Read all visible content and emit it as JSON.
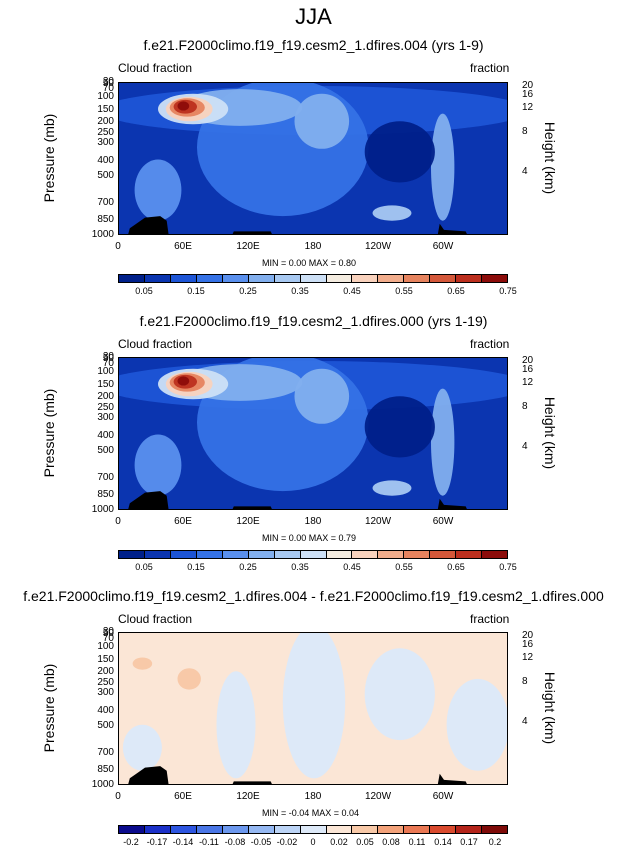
{
  "page_title": "JJA",
  "colors": {
    "ramp": [
      "#00208a",
      "#0b35b0",
      "#1d55d6",
      "#3572e6",
      "#5a90ee",
      "#82afee",
      "#a8c9f2",
      "#cde0f6",
      "#f4ece0",
      "#f9d2bd",
      "#f2ad8c",
      "#e6835e",
      "#d4583a",
      "#bc2f1e",
      "#8c0c0a"
    ],
    "diverging": [
      "#0a0a8c",
      "#1b30c8",
      "#2d55e0",
      "#4a76e6",
      "#6c98ee",
      "#95b8f2",
      "#bcd4f6",
      "#dde9f8",
      "#fbe6d6",
      "#f8c9a8",
      "#f3a27a",
      "#ea7854",
      "#d94a2e",
      "#b4241a",
      "#7e0a08"
    ],
    "land": "#000000"
  },
  "chart_data": [
    {
      "type": "heatmap",
      "title": "f.e21.F2000climo.f19_f19.cesm2_1.dfires.004 (yrs 1-9)",
      "left_annotation": "Cloud fraction",
      "right_annotation": "fraction",
      "ylabel": "Pressure (mb)",
      "ylabel_right": "Height (km)",
      "pressure_ticks": [
        "30",
        "50",
        "70",
        "100",
        "150",
        "200",
        "250",
        "300",
        "400",
        "500",
        "700",
        "850",
        "1000"
      ],
      "height_ticks": [
        "20",
        "16",
        "12",
        "8",
        "4"
      ],
      "x_ticks": [
        "0",
        "60E",
        "120E",
        "180",
        "120W",
        "60W"
      ],
      "stats": {
        "min": "0.00",
        "max": "0.80",
        "text": "MIN =   0.00   MAX =   0.80"
      },
      "colorbar_labels": [
        "0.05",
        "0.15",
        "0.25",
        "0.35",
        "0.45",
        "0.55",
        "0.65",
        "0.75"
      ],
      "scale": "ramp",
      "features": [
        {
          "name": "upper-tropospheric maximum",
          "lon": 65,
          "pressure": 200,
          "value": 0.8
        },
        {
          "name": "secondary upper maximum",
          "lon": 130,
          "pressure": 250,
          "value": 0.35
        },
        {
          "name": "low-level max",
          "lon": 275,
          "pressure": 870,
          "value": 0.35
        },
        {
          "name": "western hemisphere column",
          "lon": 298,
          "pressure": 600,
          "value": 0.3
        }
      ]
    },
    {
      "type": "heatmap",
      "title": "f.e21.F2000climo.f19_f19.cesm2_1.dfires.000 (yrs 1-19)",
      "left_annotation": "Cloud fraction",
      "right_annotation": "fraction",
      "ylabel": "Pressure (mb)",
      "ylabel_right": "Height (km)",
      "pressure_ticks": [
        "30",
        "50",
        "70",
        "100",
        "150",
        "200",
        "250",
        "300",
        "400",
        "500",
        "700",
        "850",
        "1000"
      ],
      "height_ticks": [
        "20",
        "16",
        "12",
        "8",
        "4"
      ],
      "x_ticks": [
        "0",
        "60E",
        "120E",
        "180",
        "120W",
        "60W"
      ],
      "stats": {
        "min": "0.00",
        "max": "0.79",
        "text": "MIN =   0.00   MAX =   0.79"
      },
      "colorbar_labels": [
        "0.05",
        "0.15",
        "0.25",
        "0.35",
        "0.45",
        "0.55",
        "0.65",
        "0.75"
      ],
      "scale": "ramp",
      "features": [
        {
          "name": "upper-tropospheric maximum",
          "lon": 65,
          "pressure": 200,
          "value": 0.79
        },
        {
          "name": "secondary upper maximum",
          "lon": 130,
          "pressure": 250,
          "value": 0.35
        },
        {
          "name": "low-level max",
          "lon": 275,
          "pressure": 870,
          "value": 0.35
        },
        {
          "name": "western hemisphere column",
          "lon": 298,
          "pressure": 600,
          "value": 0.3
        }
      ]
    },
    {
      "type": "heatmap",
      "title": "f.e21.F2000climo.f19_f19.cesm2_1.dfires.004 - f.e21.F2000climo.f19_f19.cesm2_1.dfires.000",
      "left_annotation": "Cloud fraction",
      "right_annotation": "fraction",
      "ylabel": "Pressure (mb)",
      "ylabel_right": "Height (km)",
      "pressure_ticks": [
        "30",
        "50",
        "70",
        "100",
        "150",
        "200",
        "250",
        "300",
        "400",
        "500",
        "700",
        "850",
        "1000"
      ],
      "height_ticks": [
        "20",
        "16",
        "12",
        "8",
        "4"
      ],
      "x_ticks": [
        "0",
        "60E",
        "120E",
        "180",
        "120W",
        "60W"
      ],
      "stats": {
        "min": "-0.04",
        "max": "0.04",
        "text": "MIN =  -0.04   MAX =   0.04"
      },
      "colorbar_labels": [
        "-0.2",
        "-0.17",
        "-0.14",
        "-0.11",
        "-0.08",
        "-0.05",
        "-0.02",
        "0",
        "0.02",
        "0.05",
        "0.08",
        "0.11",
        "0.14",
        "0.17",
        "0.2"
      ],
      "scale": "diverging",
      "features": [
        {
          "name": "positive anomaly",
          "lon": 45,
          "pressure": 200,
          "value": 0.04
        },
        {
          "name": "positive anomaly",
          "lon": 90,
          "pressure": 250,
          "value": 0.03
        }
      ]
    }
  ]
}
